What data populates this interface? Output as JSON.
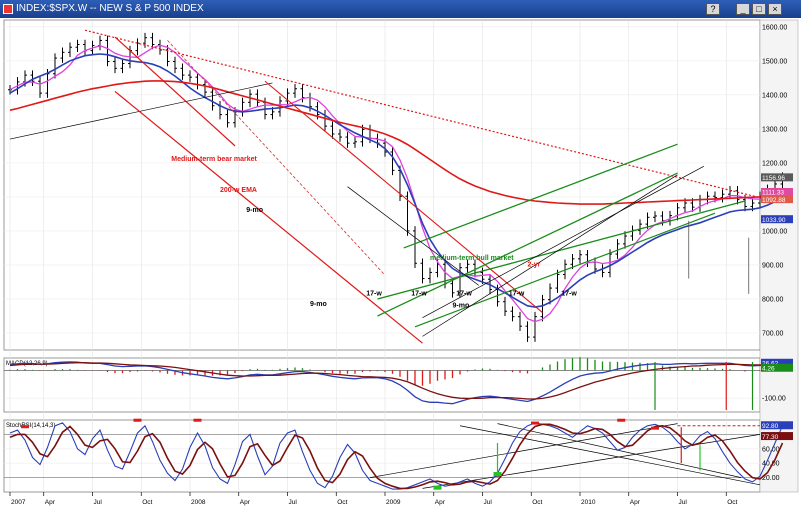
{
  "window": {
    "title": "INDEX:$SPX.W -- NEW S & P 500 INDEX",
    "buttons": [
      "?",
      "_",
      "□",
      "×"
    ]
  },
  "chart_data": {
    "type": "line",
    "price_panel": {
      "ylim": [
        650,
        1620
      ],
      "y_ticks": [
        {
          "v": 1600,
          "label": "1600.00"
        },
        {
          "v": 1500,
          "label": "1500.00"
        },
        {
          "v": 1400,
          "label": "1400.00"
        },
        {
          "v": 1300,
          "label": "1300.00"
        },
        {
          "v": 1200,
          "label": "1200.00"
        },
        {
          "v": 1100,
          "label": "1100.00"
        },
        {
          "v": 1000,
          "label": "1000.00"
        },
        {
          "v": 900,
          "label": "900.00"
        },
        {
          "v": 800,
          "label": "800.00"
        },
        {
          "v": 700,
          "label": "700.00"
        }
      ],
      "last_labels": [
        {
          "v": 1156,
          "label": "1156.96",
          "color": "#5a5a5a"
        },
        {
          "v": 1113,
          "label": "1111.33",
          "color": "#e04aa0"
        },
        {
          "v": 1092,
          "label": "1092.88",
          "color": "#e05a4a"
        },
        {
          "v": 1033,
          "label": "1033.90",
          "color": "#2b3fb8"
        }
      ],
      "price_close": [
        1415,
        1438,
        1458,
        1440,
        1405,
        1462,
        1508,
        1525,
        1540,
        1548,
        1530,
        1545,
        1560,
        1498,
        1478,
        1492,
        1530,
        1552,
        1568,
        1548,
        1532,
        1498,
        1478,
        1458,
        1452,
        1430,
        1408,
        1368,
        1342,
        1318,
        1350,
        1378,
        1402,
        1378,
        1342,
        1350,
        1382,
        1405,
        1418,
        1392,
        1365,
        1342,
        1308,
        1285,
        1276,
        1258,
        1262,
        1298,
        1272,
        1258,
        1232,
        1178,
        1102,
        1000,
        905,
        860,
        878,
        902,
        845,
        818,
        892,
        902,
        878,
        858,
        828,
        792,
        764,
        748,
        720,
        688,
        748,
        798,
        832,
        872,
        902,
        918,
        930,
        908,
        888,
        878,
        932,
        962,
        985,
        1002,
        1020,
        1040,
        1044,
        1030,
        1045,
        1068,
        1082,
        1070,
        1092,
        1102,
        1098,
        1108,
        1118,
        1092,
        1072,
        1082,
        1102,
        1122,
        1138,
        1158
      ],
      "sma50": [
        1405,
        1418,
        1432,
        1446,
        1455,
        1464,
        1475,
        1488,
        1500,
        1508,
        1515,
        1518,
        1520,
        1518,
        1512,
        1505,
        1500,
        1497,
        1495,
        1490,
        1482,
        1470,
        1455,
        1438,
        1420,
        1405,
        1392,
        1380,
        1368,
        1358,
        1352,
        1350,
        1352,
        1355,
        1358,
        1360,
        1362,
        1366,
        1370,
        1368,
        1362,
        1352,
        1340,
        1326,
        1312,
        1300,
        1288,
        1278,
        1268,
        1258,
        1242,
        1218,
        1182,
        1135,
        1080,
        1022,
        975,
        940,
        912,
        890,
        876,
        866,
        858,
        850,
        842,
        830,
        818,
        805,
        792,
        780,
        776,
        780,
        790,
        804,
        820,
        838,
        856,
        870,
        880,
        888,
        898,
        910,
        924,
        938,
        952,
        966,
        978,
        988,
        996,
        1004,
        1012,
        1018,
        1024,
        1032,
        1040,
        1048,
        1056,
        1060,
        1062,
        1064,
        1068,
        1076,
        1086,
        1094
      ],
      "ma200": [
        1355,
        1360,
        1366,
        1372,
        1378,
        1384,
        1390,
        1396,
        1402,
        1408,
        1413,
        1418,
        1422,
        1426,
        1430,
        1433,
        1436,
        1438,
        1440,
        1441,
        1441,
        1440,
        1439,
        1437,
        1434,
        1430,
        1426,
        1421,
        1415,
        1409,
        1403,
        1397,
        1391,
        1385,
        1379,
        1373,
        1367,
        1361,
        1355,
        1349,
        1343,
        1337,
        1331,
        1325,
        1319,
        1314,
        1309,
        1304,
        1298,
        1292,
        1285,
        1276,
        1266,
        1254,
        1240,
        1225,
        1210,
        1195,
        1180,
        1166,
        1153,
        1142,
        1132,
        1124,
        1116,
        1110,
        1104,
        1099,
        1095,
        1091,
        1088,
        1086,
        1084,
        1082,
        1081,
        1080,
        1079,
        1079,
        1079,
        1079,
        1080,
        1081,
        1082,
        1083,
        1084,
        1085,
        1086,
        1087,
        1088,
        1089,
        1090,
        1091,
        1092,
        1093,
        1094,
        1095,
        1096,
        1097,
        1098,
        1099,
        1100,
        1101,
        1102,
        1103
      ],
      "annotations": [
        {
          "text": "Medium-term bear market",
          "color": "#e01818",
          "at": [
            43,
            1205
          ]
        },
        {
          "text": "200-w EMA",
          "color": "#e01818",
          "at": [
            56,
            1115
          ]
        },
        {
          "text": "9-mo",
          "color": "#000000",
          "at": [
            63,
            1055
          ]
        },
        {
          "text": "9-mo",
          "color": "#000000",
          "at": [
            80,
            780
          ]
        },
        {
          "text": "9-mo",
          "color": "#000000",
          "at": [
            118,
            775
          ]
        },
        {
          "text": "medium-term bull market",
          "color": "#1a8c1a",
          "at": [
            112,
            915
          ]
        },
        {
          "text": "17-w",
          "color": "#000000",
          "at": [
            95,
            810
          ]
        },
        {
          "text": "17-w",
          "color": "#000000",
          "at": [
            107,
            810
          ]
        },
        {
          "text": "17-w",
          "color": "#000000",
          "at": [
            119,
            810
          ]
        },
        {
          "text": "17-w",
          "color": "#000000",
          "at": [
            133,
            810
          ]
        },
        {
          "text": "17-w",
          "color": "#000000",
          "at": [
            147,
            810
          ]
        },
        {
          "text": "2-yr",
          "color": "#e01818",
          "at": [
            138,
            895
          ]
        }
      ]
    },
    "macd_panel": {
      "title": "MACD(12,26,9)",
      "ylim": [
        -150,
        45
      ],
      "y_ticks": [
        {
          "v": -100,
          "label": "-100.00"
        }
      ],
      "last_labels": [
        {
          "v": 26,
          "label": "26.62",
          "color": "#2b3fb8"
        },
        {
          "v": 8,
          "label": "4.26",
          "color": "#1a8c1a"
        }
      ],
      "macd": [
        20,
        24,
        26,
        25,
        22,
        24,
        28,
        30,
        31,
        30,
        27,
        26,
        26,
        21,
        16,
        14,
        15,
        16,
        17,
        14,
        10,
        4,
        -2,
        -8,
        -12,
        -16,
        -20,
        -25,
        -28,
        -30,
        -27,
        -22,
        -16,
        -14,
        -16,
        -16,
        -12,
        -8,
        -4,
        -4,
        -7,
        -11,
        -16,
        -21,
        -25,
        -28,
        -30,
        -27,
        -26,
        -26,
        -30,
        -38,
        -52,
        -72,
        -95,
        -110,
        -115,
        -115,
        -118,
        -120,
        -112,
        -104,
        -98,
        -94,
        -93,
        -96,
        -100,
        -104,
        -108,
        -112,
        -104,
        -92,
        -78,
        -62,
        -46,
        -32,
        -20,
        -14,
        -10,
        -8,
        -2,
        5,
        10,
        15,
        19,
        22,
        24,
        22,
        22,
        24,
        25,
        24,
        25,
        26,
        26,
        26,
        26,
        22,
        18,
        17,
        18,
        21,
        24,
        27
      ],
      "signal": [
        18,
        20,
        22,
        23,
        23,
        23,
        24,
        26,
        27,
        28,
        28,
        27,
        27,
        26,
        24,
        22,
        20,
        19,
        18,
        17,
        16,
        14,
        11,
        7,
        3,
        -1,
        -5,
        -9,
        -13,
        -17,
        -19,
        -20,
        -20,
        -19,
        -18,
        -18,
        -17,
        -15,
        -13,
        -11,
        -10,
        -10,
        -11,
        -13,
        -15,
        -18,
        -20,
        -22,
        -23,
        -24,
        -25,
        -28,
        -33,
        -41,
        -52,
        -64,
        -75,
        -84,
        -91,
        -97,
        -100,
        -101,
        -101,
        -100,
        -98,
        -98,
        -98,
        -99,
        -101,
        -103,
        -103,
        -101,
        -96,
        -89,
        -80,
        -70,
        -60,
        -51,
        -42,
        -35,
        -28,
        -21,
        -15,
        -9,
        -4,
        0,
        4,
        7,
        10,
        12,
        14,
        16,
        17,
        19,
        20,
        21,
        22,
        22,
        21,
        20,
        20,
        20,
        21,
        22
      ]
    },
    "stoch_panel": {
      "title": "StochRSI(14,14,3)",
      "ylim": [
        0,
        100
      ],
      "y_ticks": [
        {
          "v": 80,
          "label": "80.00"
        },
        {
          "v": 60,
          "label": "60.00"
        },
        {
          "v": 40,
          "label": "40.00"
        },
        {
          "v": 20,
          "label": "20.00"
        }
      ],
      "last_labels": [
        {
          "v": 92,
          "label": "92.80",
          "color": "#2b3fb8"
        },
        {
          "v": 77,
          "label": "77.30",
          "color": "#7a1010"
        }
      ],
      "k": [
        82,
        86,
        72,
        48,
        38,
        62,
        92,
        96,
        84,
        60,
        52,
        74,
        86,
        58,
        36,
        32,
        56,
        82,
        92,
        70,
        44,
        26,
        16,
        32,
        62,
        82,
        64,
        34,
        18,
        12,
        38,
        70,
        80,
        50,
        24,
        36,
        68,
        82,
        86,
        56,
        30,
        12,
        6,
        22,
        48,
        66,
        54,
        30,
        16,
        12,
        8,
        4,
        4,
        6,
        10,
        14,
        18,
        12,
        8,
        10,
        14,
        18,
        12,
        8,
        14,
        26,
        46,
        68,
        84,
        92,
        96,
        94,
        92,
        88,
        82,
        76,
        84,
        92,
        88,
        82,
        70,
        58,
        62,
        76,
        86,
        92,
        94,
        90,
        82,
        70,
        60,
        66,
        78,
        84,
        74,
        56,
        40,
        28,
        18,
        14,
        22,
        44,
        68,
        92
      ],
      "d": [
        76,
        80,
        80,
        69,
        53,
        49,
        64,
        83,
        91,
        80,
        65,
        62,
        71,
        73,
        60,
        42,
        41,
        57,
        77,
        81,
        69,
        47,
        29,
        25,
        37,
        59,
        69,
        60,
        39,
        21,
        23,
        40,
        63,
        67,
        51,
        37,
        43,
        62,
        79,
        75,
        57,
        33,
        16,
        13,
        25,
        45,
        56,
        50,
        33,
        19,
        12,
        8,
        5,
        5,
        7,
        10,
        14,
        15,
        13,
        10,
        11,
        14,
        15,
        13,
        11,
        16,
        29,
        47,
        66,
        81,
        91,
        94,
        94,
        91,
        87,
        82,
        81,
        84,
        88,
        87,
        80,
        70,
        63,
        65,
        75,
        85,
        91,
        92,
        89,
        81,
        71,
        65,
        68,
        76,
        79,
        71,
        57,
        41,
        29,
        20,
        18,
        27,
        45,
        68
      ]
    },
    "x_ticks": [
      {
        "i": 0,
        "label": "2007"
      },
      {
        "i": 9,
        "label": "Apr"
      },
      {
        "i": 22,
        "label": "Jul"
      },
      {
        "i": 35,
        "label": "Oct"
      },
      {
        "i": 48,
        "label": "2008"
      },
      {
        "i": 61,
        "label": "Apr"
      },
      {
        "i": 74,
        "label": "Jul"
      },
      {
        "i": 87,
        "label": "Oct"
      },
      {
        "i": 100,
        "label": "2009"
      },
      {
        "i": 113,
        "label": "Apr"
      },
      {
        "i": 126,
        "label": "Jul"
      },
      {
        "i": 139,
        "label": "Oct"
      },
      {
        "i": 152,
        "label": "2010"
      },
      {
        "i": 165,
        "label": "Apr"
      },
      {
        "i": 178,
        "label": "Jul"
      },
      {
        "i": 191,
        "label": "Oct"
      }
    ],
    "x_ticks_note": "bar index i spans 0..200 across the plot; data arrays above are sampled every 2 bars",
    "colors": {
      "price_bar": "#000000",
      "sma20": "#e040e0",
      "sma50": "#2b3fb8",
      "ma200": "#e01818",
      "bull_channel": "#1a8c1a",
      "bear_channel": "#e01818",
      "macd_hist_pos": "#1a8c1a",
      "macd_hist_neg": "#e01818"
    }
  }
}
